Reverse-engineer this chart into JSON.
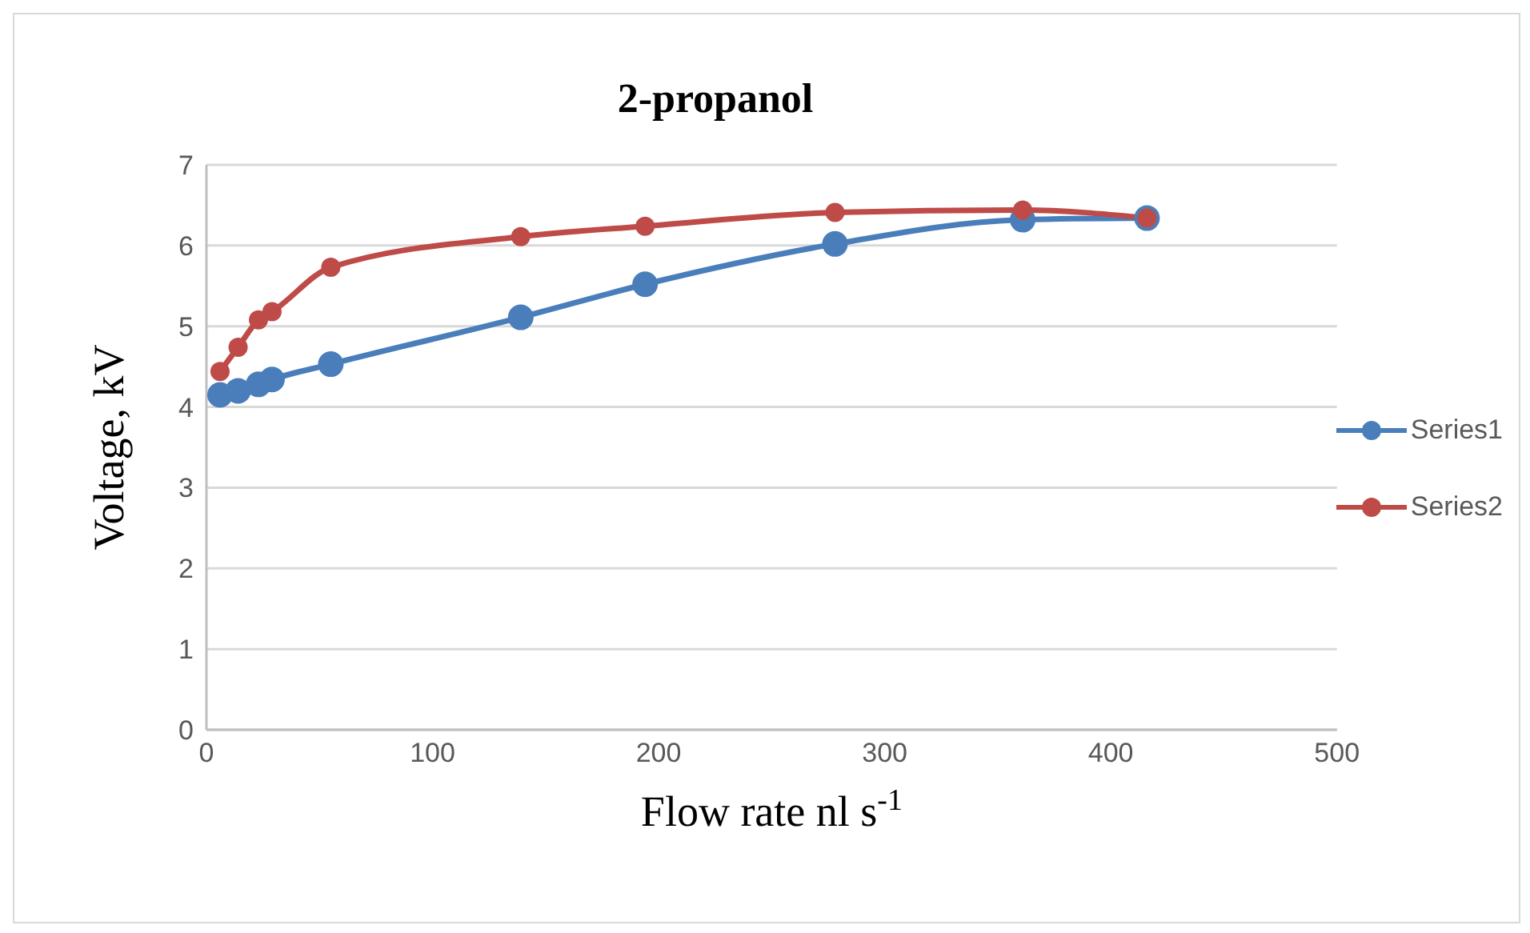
{
  "chart_data": {
    "type": "line",
    "title": "2-propanol",
    "xlabel": "Flow rate nl s$^{-1}$",
    "ylabel": "Voltage, kV",
    "series": [
      {
        "name": "Series1",
        "color": "#4a7ebb",
        "x": [
          6,
          14,
          23,
          29,
          55,
          139,
          194,
          278,
          361,
          416
        ],
        "values": [
          4.15,
          4.2,
          4.28,
          4.34,
          4.53,
          5.11,
          5.52,
          6.02,
          6.32,
          6.34
        ]
      },
      {
        "name": "Series2",
        "color": "#be4b48",
        "x": [
          6,
          14,
          23,
          29,
          55,
          139,
          194,
          278,
          361,
          416
        ],
        "values": [
          4.44,
          4.74,
          5.08,
          5.18,
          5.73,
          6.11,
          6.24,
          6.41,
          6.44,
          6.34
        ]
      }
    ],
    "xlim": [
      0,
      500
    ],
    "xticks": [
      0,
      100,
      200,
      300,
      400,
      500
    ],
    "ylim": [
      0,
      7
    ],
    "yticks": [
      0,
      1,
      2,
      3,
      4,
      5,
      6,
      7
    ],
    "grid": "y",
    "legend": "right",
    "marker": "circle",
    "line_style": "solid"
  }
}
